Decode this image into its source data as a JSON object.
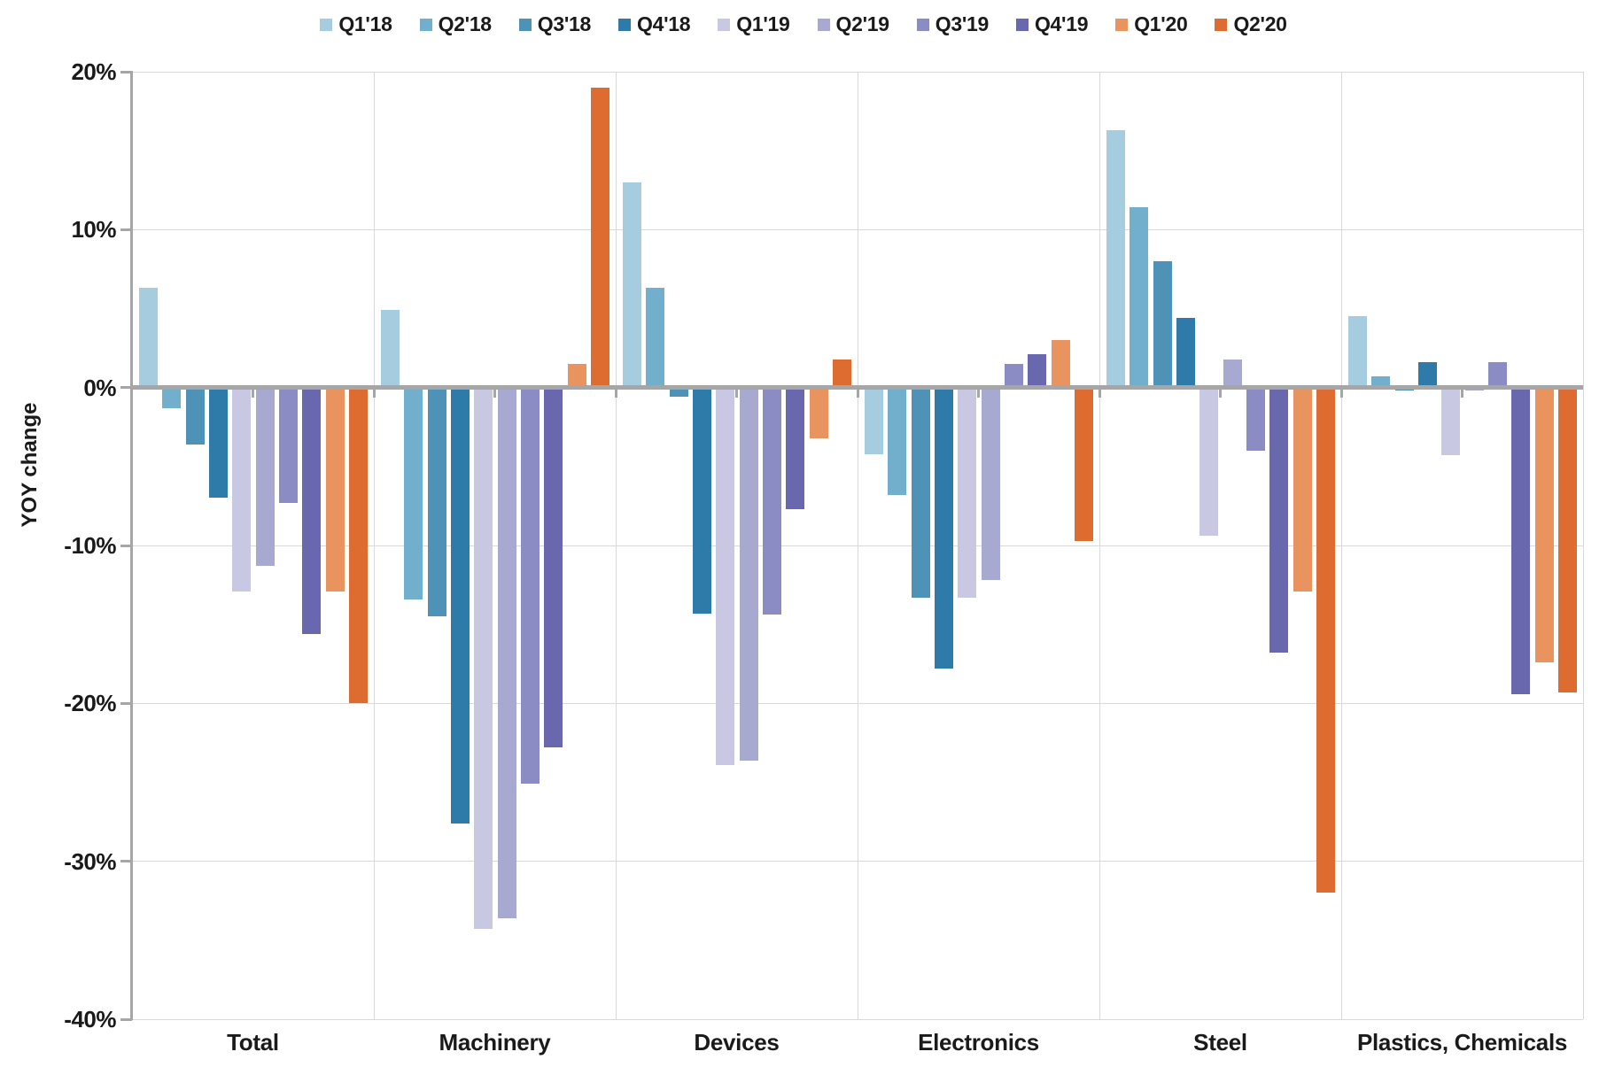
{
  "chart_data": {
    "type": "bar",
    "title": "",
    "xlabel": "",
    "ylabel": "YOY change",
    "legend_position": "top",
    "grid": "horizontal gridlines + vertical category separators",
    "ylim": [
      -40,
      20
    ],
    "yticks": [
      20,
      10,
      0,
      -10,
      -20,
      -30,
      -40
    ],
    "ytick_labels": [
      "20%",
      "10%",
      "0%",
      "-10%",
      "-20%",
      "-30%",
      "-40%"
    ],
    "categories": [
      "Total",
      "Machinery",
      "Devices",
      "Electronics",
      "Steel",
      "Plastics, Chemicals"
    ],
    "series": [
      {
        "name": "Q1'18",
        "color": "#a6cce0",
        "values": [
          6.3,
          4.9,
          13.0,
          -4.2,
          16.3,
          4.5
        ]
      },
      {
        "name": "Q2'18",
        "color": "#72afcd",
        "values": [
          -1.3,
          -13.4,
          6.3,
          -6.8,
          11.4,
          0.7
        ]
      },
      {
        "name": "Q3'18",
        "color": "#4e93b7",
        "values": [
          -3.6,
          -14.5,
          -0.6,
          -13.3,
          8.0,
          -0.2
        ]
      },
      {
        "name": "Q4'18",
        "color": "#2e7aa8",
        "values": [
          -7.0,
          -27.6,
          -14.3,
          -17.8,
          4.4,
          1.6
        ]
      },
      {
        "name": "Q1'19",
        "color": "#c8c8e3",
        "values": [
          -12.9,
          -34.3,
          -23.9,
          -13.3,
          -9.4,
          -4.3
        ]
      },
      {
        "name": "Q2'19",
        "color": "#a7a9d1",
        "values": [
          -11.3,
          -33.6,
          -23.6,
          -12.2,
          1.8,
          -0.2
        ]
      },
      {
        "name": "Q3'19",
        "color": "#8b8cc3",
        "values": [
          -7.3,
          -25.1,
          -14.4,
          1.5,
          -4.0,
          1.6
        ]
      },
      {
        "name": "Q4'19",
        "color": "#6968af",
        "values": [
          -15.6,
          -22.8,
          -7.7,
          2.1,
          -16.8,
          -19.4
        ]
      },
      {
        "name": "Q1'20",
        "color": "#e9935e",
        "values": [
          -12.9,
          1.5,
          -3.2,
          3.0,
          -12.9,
          -17.4
        ]
      },
      {
        "name": "Q2'20",
        "color": "#de6c31",
        "values": [
          -20.0,
          19.0,
          1.8,
          -9.7,
          -32.0,
          -19.3
        ]
      }
    ]
  },
  "colors": {
    "axis": "#a6a6a6",
    "grid": "#d9d9d9",
    "text": "#1a1a1a",
    "background": "#ffffff"
  }
}
